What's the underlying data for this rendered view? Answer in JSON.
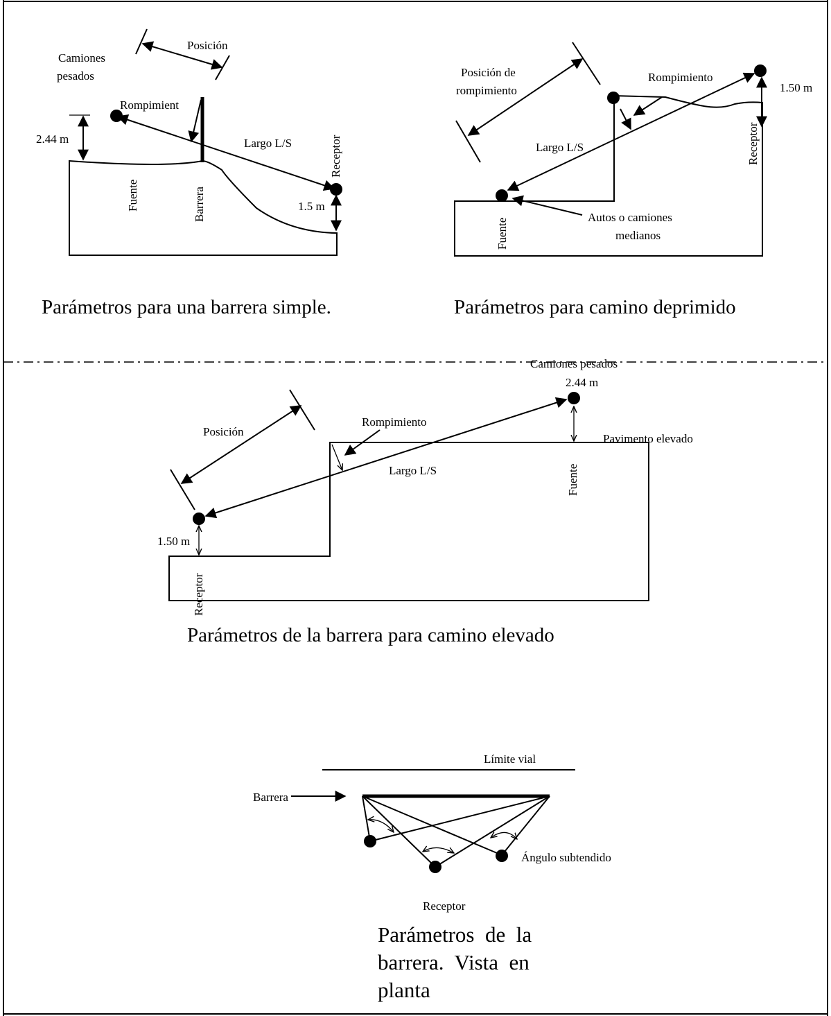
{
  "panel1": {
    "label_trucks_1": "Camiones",
    "label_trucks_2": "pesados",
    "label_position": "Posición",
    "label_break": "Rompimient",
    "label_height": "2.44 m",
    "label_length": "Largo L/S",
    "label_receiver": "Receptor",
    "label_source": "Fuente",
    "label_barrier": "Barrera",
    "label_receiver_height": "1.5 m",
    "caption": "Parámetros para una barrera simple."
  },
  "panel2": {
    "label_break_position_1": "Posición de",
    "label_break_position_2": "rompimiento",
    "label_break": "Rompimiento",
    "label_height": "1.50 m",
    "label_length": "Largo L/S",
    "label_receiver": "Receptor",
    "label_source": "Fuente",
    "label_vehicles_1": "Autos o camiones",
    "label_vehicles_2": "medianos",
    "caption": "Parámetros para camino deprimido"
  },
  "panel3": {
    "label_trucks": "Camiones pesados",
    "label_height_top": "2.44 m",
    "label_position": "Posición",
    "label_break": "Rompimiento",
    "label_pavement": "Pavimento elevado",
    "label_length": "Largo L/S",
    "label_source": "Fuente",
    "label_height_bottom": "1.50 m",
    "label_receiver": "Receptor",
    "caption": "Parámetros de la barrera para camino elevado"
  },
  "panel4": {
    "label_limit": "Límite vial",
    "label_barrier": "Barrera",
    "label_angle": "Ángulo subtendido",
    "label_receiver": "Receptor",
    "caption_1": "Parámetros  de  la",
    "caption_2": "barrera.  Vista  en",
    "caption_3": "planta"
  }
}
